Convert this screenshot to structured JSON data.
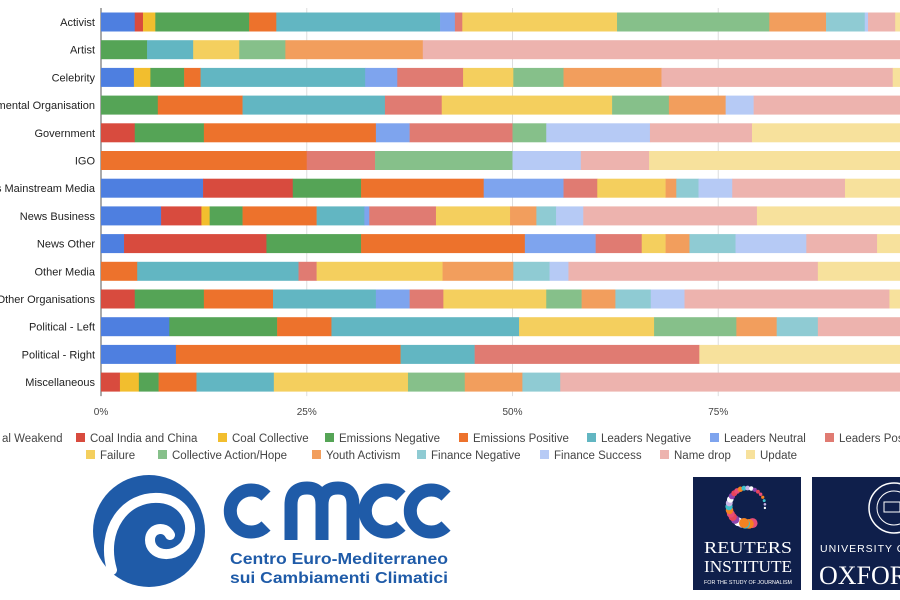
{
  "chart_data": {
    "type": "bar",
    "orientation": "horizontal",
    "stacked": "percent",
    "title": "",
    "xlabel": "",
    "ylabel": "",
    "xlim": [
      0,
      100
    ],
    "x_ticks": [
      "0%",
      "25%",
      "50%",
      "75%"
    ],
    "grid": true,
    "legend_position": "bottom",
    "categories": [
      "Activist",
      "Artist",
      "Celebrity",
      "mental Organisation",
      "Government",
      "IGO",
      "s Mainstream Media",
      "News Business",
      "News Other",
      "Other Media",
      "Other Organisations",
      "Political - Left",
      "Political - Right",
      "Miscellaneous"
    ],
    "series": [
      {
        "name": "al Weakend",
        "color": "#4e7fe0",
        "values": [
          4.1,
          0,
          4.0,
          0,
          0,
          0,
          12.4,
          7.3,
          2.8,
          0,
          0,
          8.3,
          9.1,
          0
        ]
      },
      {
        "name": "Coal India and China",
        "color": "#d84b3e",
        "values": [
          1.0,
          0,
          0,
          0,
          4.1,
          0,
          10.9,
          4.9,
          17.3,
          0,
          4.1,
          0,
          0,
          2.3
        ]
      },
      {
        "name": "Coal Collective",
        "color": "#f2be2e",
        "values": [
          1.5,
          0,
          2.0,
          0,
          0,
          0,
          0,
          1.0,
          0,
          0,
          0,
          0,
          0,
          2.3
        ]
      },
      {
        "name": "Emissions Negative",
        "color": "#55a456",
        "values": [
          11.4,
          5.6,
          4.1,
          6.9,
          8.4,
          0,
          8.3,
          4.0,
          11.5,
          0,
          8.4,
          13.1,
          0,
          2.4
        ]
      },
      {
        "name": "Emissions Positive",
        "color": "#ed722c",
        "values": [
          3.3,
          0,
          2.0,
          10.3,
          20.9,
          25.0,
          14.9,
          9.0,
          19.9,
          4.4,
          8.4,
          6.6,
          27.3,
          4.6
        ]
      },
      {
        "name": "Leaders Negative",
        "color": "#62b6c2",
        "values": [
          19.9,
          5.6,
          20.0,
          17.3,
          0,
          0,
          0,
          5.8,
          0,
          19.6,
          12.5,
          22.8,
          9.0,
          9.4
        ]
      },
      {
        "name": "Leaders Neutral",
        "color": "#7ea4ee",
        "values": [
          1.8,
          0,
          3.9,
          0,
          4.1,
          0,
          9.7,
          0.6,
          8.6,
          0,
          4.1,
          0,
          0,
          0
        ]
      },
      {
        "name": "Leaders Pos",
        "color": "#e07b72",
        "values": [
          0.9,
          0,
          8.0,
          6.9,
          12.5,
          8.3,
          4.1,
          8.1,
          5.6,
          2.2,
          4.1,
          0,
          27.3,
          0
        ]
      },
      {
        "name": "Failure",
        "color": "#f4cf5e",
        "values": [
          18.8,
          5.6,
          6.1,
          20.7,
          0,
          0,
          8.3,
          9.0,
          2.9,
          15.3,
          12.5,
          16.4,
          0,
          16.3
        ]
      },
      {
        "name": "Collective Action/Hope",
        "color": "#86c08a",
        "values": [
          18.5,
          5.6,
          6.1,
          6.9,
          4.1,
          16.7,
          0,
          0,
          0,
          0,
          4.3,
          10.0,
          0,
          6.9
        ]
      },
      {
        "name": "Youth Activism",
        "color": "#f29e5d",
        "values": [
          6.9,
          16.7,
          11.9,
          6.9,
          0,
          0,
          1.3,
          3.2,
          2.9,
          8.6,
          4.1,
          4.9,
          0,
          7.0
        ]
      },
      {
        "name": "Finance Negative",
        "color": "#8fcbd3",
        "values": [
          4.7,
          0,
          0,
          0,
          0,
          0,
          2.7,
          2.4,
          5.6,
          4.4,
          4.3,
          5.0,
          0,
          4.6
        ]
      },
      {
        "name": "Finance Success",
        "color": "#b6caf5",
        "values": [
          0.4,
          0,
          0,
          3.4,
          12.6,
          8.3,
          4.1,
          3.3,
          8.6,
          2.3,
          4.1,
          0,
          0,
          0
        ]
      },
      {
        "name": "Name drop",
        "color": "#edb3ae",
        "values": [
          3.3,
          61.1,
          28.1,
          20.7,
          12.4,
          8.3,
          13.7,
          21.1,
          8.6,
          30.3,
          24.9,
          12.9,
          0,
          44.2
        ]
      },
      {
        "name": "Update",
        "color": "#f7e19c",
        "values": [
          3.5,
          0,
          3.9,
          0,
          20.9,
          33.3,
          9.5,
          20.3,
          5.6,
          12.9,
          4.2,
          0,
          27.3,
          0
        ]
      }
    ]
  },
  "logos": {
    "cmcc": {
      "name": "cmcc",
      "line1": "Centro Euro-Mediterraneo",
      "line2": "sui Cambiamenti Climatici",
      "color": "#1f5ba8"
    },
    "reuters": {
      "line1": "REUTERS",
      "line2": "INSTITUTE",
      "line3": "FOR THE STUDY OF JOURNALISM",
      "bg": "#0f1f4b"
    },
    "oxford": {
      "line1": "UNIVERSITY OF",
      "line2": "OXFORD",
      "bg": "#0f1f4b"
    }
  }
}
